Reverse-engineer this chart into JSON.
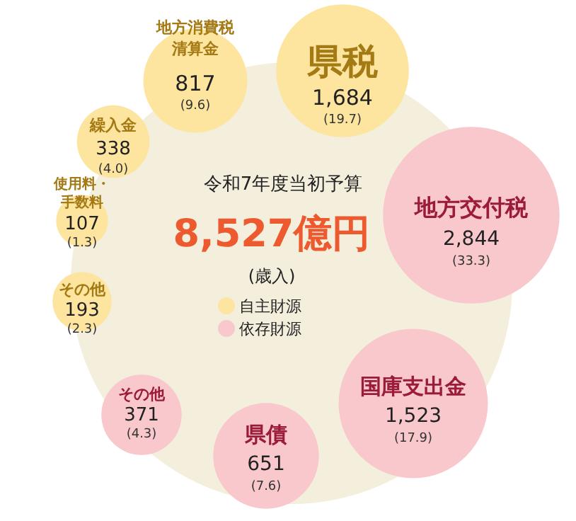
{
  "chart_data": {
    "type": "other",
    "title": "令和7年度当初予算",
    "subtitle": "8,527億円",
    "categories": [
      "県税",
      "地方交付税",
      "国庫支出金",
      "県債",
      "その他",
      "その他",
      "使用料・手数料",
      "繰入金",
      "地方消費税清算金"
    ],
    "series": [
      {
        "name": "自主財源",
        "color": "#fde5a0",
        "values": [
          1684,
          null,
          null,
          null,
          null,
          193,
          107,
          338,
          817
        ],
        "value_labels": [
          "1,684",
          null,
          null,
          null,
          null,
          "193",
          "107",
          "338",
          "817"
        ]
      },
      {
        "name": "依存財源",
        "color": "#f9c8cc",
        "values": [
          null,
          2844,
          1523,
          651,
          371,
          null,
          null,
          null,
          null
        ],
        "value_labels": [
          null,
          "2,844",
          "1,523",
          "651",
          "371",
          null,
          null,
          null,
          null
        ]
      }
    ],
    "legend": "bottom",
    "annotations": [
      "(歳入)",
      {
        "text": "(19.7)",
        "x": "県税"
      },
      {
        "text": "(33.3)",
        "x": "地方交付税"
      },
      {
        "text": "(17.9)",
        "x": "国庫支出金"
      },
      {
        "text": "(7.6)",
        "x": "県債"
      },
      {
        "text": "(4.3)",
        "x": "その他"
      },
      {
        "text": "(2.3)",
        "x": "その他"
      },
      {
        "text": "(1.3)",
        "x": "使用料・手数料"
      },
      {
        "text": "(4.0)",
        "x": "繰入金"
      },
      {
        "text": "(9.6)",
        "x": "地方消費税清算金"
      }
    ]
  }
}
